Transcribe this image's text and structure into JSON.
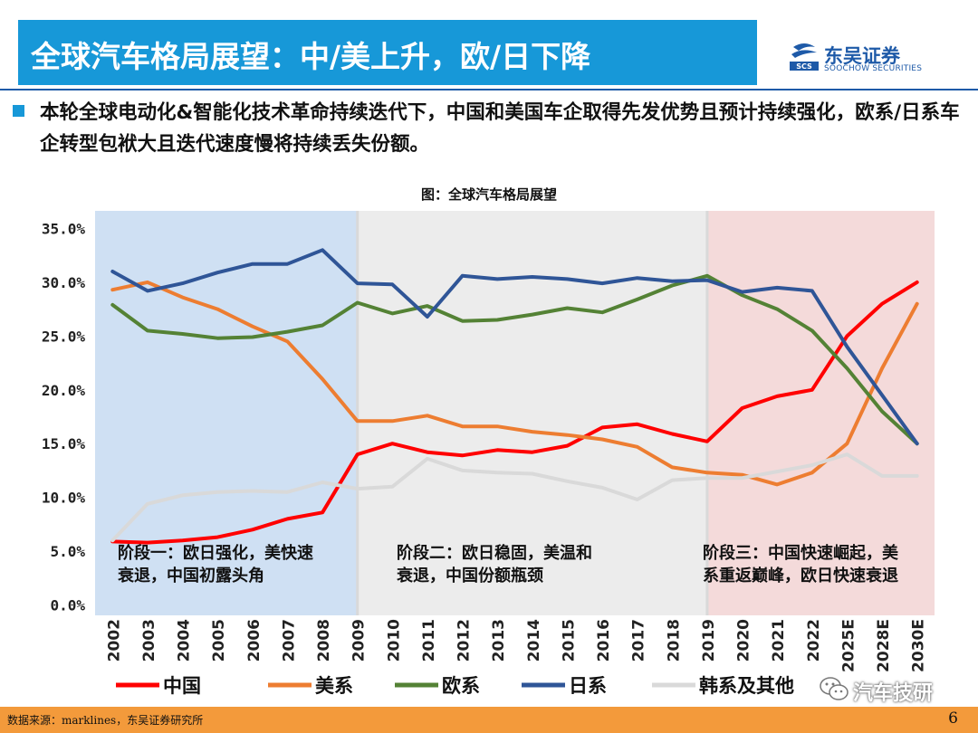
{
  "header": {
    "title": "全球汽车格局展望：中/美上升，欧/日下降"
  },
  "logo": {
    "name": "东吴证券",
    "english": "SOOCHOW SECURITIES",
    "mark": "SCS",
    "brand_color": "#1e5aa8"
  },
  "bullet_text": "本轮全球电动化&智能化技术革命持续迭代下，中国和美国车企取得先发优势且预计持续强化，欧系/日系车企转型包袱大且迭代速度慢将持续丢失份额。",
  "chart_data": {
    "type": "line",
    "title": "图：全球汽车格局展望",
    "xlabel": "",
    "ylabel": "",
    "categories": [
      "2002",
      "2003",
      "2004",
      "2005",
      "2006",
      "2007",
      "2008",
      "2009",
      "2010",
      "2011",
      "2012",
      "2013",
      "2014",
      "2015",
      "2016",
      "2017",
      "2018",
      "2019",
      "2020",
      "2021",
      "2022",
      "2025E",
      "2028E",
      "2030E"
    ],
    "ylim": [
      0,
      35
    ],
    "yticks": [
      "0.0%",
      "5.0%",
      "10.0%",
      "15.0%",
      "20.0%",
      "25.0%",
      "30.0%",
      "35.0%"
    ],
    "grid": false,
    "legend_position": "bottom",
    "series": [
      {
        "name": "中国",
        "color": "#ff0000",
        "values": [
          5.9,
          5.8,
          6.0,
          6.3,
          7.0,
          8.0,
          8.6,
          14.0,
          15.0,
          14.2,
          13.9,
          14.4,
          14.2,
          14.8,
          16.5,
          16.8,
          15.9,
          15.2,
          18.3,
          19.4,
          20.0,
          25.0,
          28.0,
          30.0
        ]
      },
      {
        "name": "美系",
        "color": "#ed7d31",
        "values": [
          29.3,
          30.0,
          28.6,
          27.5,
          25.9,
          24.5,
          21.0,
          17.1,
          17.1,
          17.6,
          16.6,
          16.6,
          16.1,
          15.8,
          15.4,
          14.7,
          12.8,
          12.3,
          12.1,
          11.2,
          12.3,
          15.0,
          22.0,
          28.0
        ]
      },
      {
        "name": "欧系",
        "color": "#548235",
        "values": [
          27.9,
          25.5,
          25.2,
          24.8,
          24.9,
          25.4,
          26.0,
          28.1,
          27.1,
          27.8,
          26.4,
          26.5,
          27.0,
          27.6,
          27.2,
          28.4,
          29.7,
          30.6,
          28.8,
          27.5,
          25.5,
          22.0,
          18.0,
          15.0
        ]
      },
      {
        "name": "日系",
        "color": "#2f5597",
        "values": [
          31.0,
          29.2,
          29.9,
          30.9,
          31.7,
          31.7,
          33.0,
          29.9,
          29.8,
          26.8,
          30.6,
          30.3,
          30.5,
          30.3,
          29.9,
          30.4,
          30.1,
          30.2,
          29.1,
          29.5,
          29.2,
          24.0,
          19.5,
          15.0
        ]
      },
      {
        "name": "韩系及其他",
        "color": "#d9d9d9",
        "values": [
          6.0,
          9.4,
          10.2,
          10.5,
          10.6,
          10.5,
          11.4,
          10.8,
          11.0,
          13.6,
          12.5,
          12.3,
          12.2,
          11.5,
          10.9,
          9.8,
          11.6,
          11.8,
          11.8,
          12.4,
          13.0,
          14.0,
          12.0,
          12.0
        ]
      }
    ],
    "phases": [
      {
        "label_line1": "阶段一：欧日强化，美快速",
        "label_line2": "衰退，中国初露头角",
        "start": "2002",
        "end": "2009",
        "color": "#cfe0f3"
      },
      {
        "label_line1": "阶段二：欧日稳固，美温和",
        "label_line2": "衰退，中国份额瓶颈",
        "start": "2009",
        "end": "2019",
        "color": "#ececec"
      },
      {
        "label_line1": "阶段三：中国快速崛起，美",
        "label_line2": "系重返巅峰，欧日快速衰退",
        "start": "2019",
        "end": "2030E",
        "color": "#f4dada"
      }
    ]
  },
  "footer": {
    "source": "数据来源：marklines，东吴证券研究所",
    "page": "6"
  },
  "watermark": {
    "text": "汽车技研",
    "icon": "wechat-icon"
  }
}
